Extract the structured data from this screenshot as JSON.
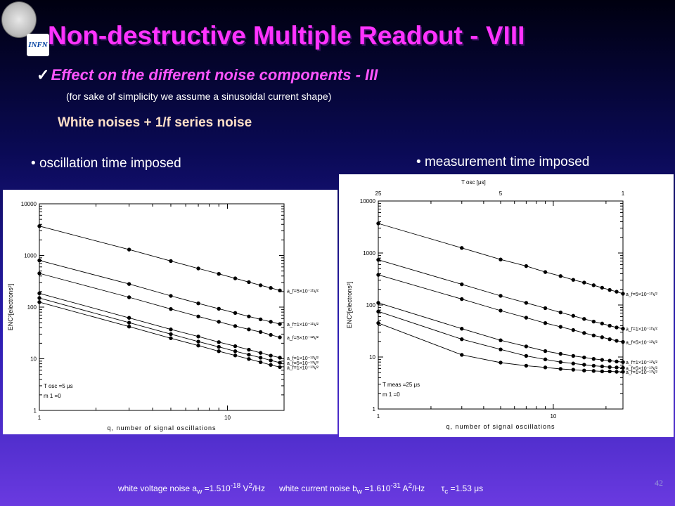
{
  "header": {
    "title": "Non-destructive Multiple Readout - VIII",
    "subtitle": "Effect on the different noise components - III",
    "note": "(for sake of simplicity we assume a sinusoidal current shape)",
    "section_heading": "White noises + 1/f series noise",
    "logo_text": "INFN"
  },
  "bullets": {
    "left": "oscillation time imposed",
    "right": "measurement time imposed"
  },
  "footer": {
    "white_voltage": "white voltage noise a",
    "white_voltage_sub": "w",
    "white_voltage_val": " =1.510",
    "white_voltage_exp": "-18",
    "white_voltage_unit": " V",
    "white_voltage_unit_exp": "2",
    "white_voltage_tail": "/Hz",
    "white_current": "white current noise b",
    "white_current_sub": "w",
    "white_current_val": " =1.610",
    "white_current_exp": "-31",
    "white_current_unit": " A",
    "white_current_unit_exp": "2",
    "white_current_tail": "/Hz",
    "tau": "τ",
    "tau_sub": "c",
    "tau_val": " =1.53 μs",
    "slide_number": "42"
  },
  "chart_data": [
    {
      "type": "line",
      "xscale": "log",
      "yscale": "log",
      "xlim": [
        1,
        20
      ],
      "ylim": [
        1,
        10000
      ],
      "xlabel": "q, number of signal oscillations",
      "ylabel": "ENC²[electrons²]",
      "xticks": [
        "1",
        "10"
      ],
      "yticks": [
        "1",
        "10",
        "100",
        "1000",
        "10000"
      ],
      "annotation": [
        "T osc =5 μs",
        "m 1 =0"
      ],
      "x": [
        1,
        3,
        5,
        7,
        9,
        11,
        13,
        15,
        17,
        19
      ],
      "series": [
        {
          "name": "a_f=5×10⁻¹¹V²",
          "values": [
            3700,
            1300,
            780,
            560,
            440,
            360,
            305,
            265,
            235,
            210
          ]
        },
        {
          "name": "a_f=1×10⁻¹¹V²",
          "values": [
            800,
            280,
            165,
            118,
            93,
            77,
            66,
            58,
            52,
            47
          ]
        },
        {
          "name": "a_f=5×10⁻¹²V²",
          "values": [
            450,
            155,
            92,
            66,
            52,
            43,
            37,
            33,
            29,
            26
          ]
        },
        {
          "name": "a_f=1×10⁻¹²V²",
          "values": [
            185,
            62,
            37,
            27,
            21,
            17.5,
            15,
            13,
            11.5,
            10.5
          ]
        },
        {
          "name": "a_f=5×10⁻¹³V²",
          "values": [
            150,
            50,
            30,
            21.5,
            17,
            14,
            12,
            10.5,
            9.3,
            8.4
          ]
        },
        {
          "name": "a_f=1×10⁻¹³V²",
          "values": [
            125,
            42,
            25,
            18,
            14,
            11.6,
            9.9,
            8.6,
            7.6,
            6.9
          ]
        }
      ]
    },
    {
      "type": "line",
      "xscale": "log",
      "yscale": "log",
      "xlim": [
        1,
        25
      ],
      "ylim": [
        1,
        10000
      ],
      "xlabel": "q, number of signal oscillations",
      "ylabel": "ENC²[electrons²]",
      "x2label": "T osc [μs]",
      "x2ticks": [
        "25",
        "5",
        "1"
      ],
      "xticks": [
        "1",
        "10"
      ],
      "yticks": [
        "1",
        "10",
        "100",
        "1000",
        "10000"
      ],
      "annotation": [
        "T meas =25 μs",
        "m 1 =0"
      ],
      "x": [
        1,
        3,
        5,
        7,
        9,
        11,
        13,
        15,
        17,
        19,
        21,
        23,
        25
      ],
      "series": [
        {
          "name": "a_f=5×10⁻¹¹V²",
          "values": [
            3700,
            1250,
            750,
            560,
            430,
            360,
            305,
            270,
            240,
            215,
            195,
            180,
            165
          ]
        },
        {
          "name": "a_f=1×10⁻¹¹V²",
          "values": [
            740,
            250,
            150,
            110,
            87,
            72,
            62,
            54,
            48,
            44,
            40,
            37,
            35
          ]
        },
        {
          "name": "a_f=5×10⁻¹²V²",
          "values": [
            380,
            130,
            78,
            57,
            45,
            38,
            33,
            29,
            26,
            24,
            22,
            20.5,
            19.5
          ]
        },
        {
          "name": "a_f=1×10⁻¹²V²",
          "values": [
            110,
            35,
            21,
            16,
            13,
            11.5,
            10.5,
            9.8,
            9.2,
            8.8,
            8.5,
            8.2,
            8
          ]
        },
        {
          "name": "a_f=5×10⁻¹³V²",
          "values": [
            75,
            22,
            14,
            10.5,
            9,
            8,
            7.5,
            7.1,
            6.8,
            6.6,
            6.4,
            6.3,
            6.2
          ]
        },
        {
          "name": "a_f=1×10⁻¹³V²",
          "values": [
            45,
            11,
            7.8,
            6.8,
            6.3,
            5.9,
            5.7,
            5.5,
            5.4,
            5.3,
            5.3,
            5.2,
            5.2
          ]
        }
      ]
    }
  ]
}
